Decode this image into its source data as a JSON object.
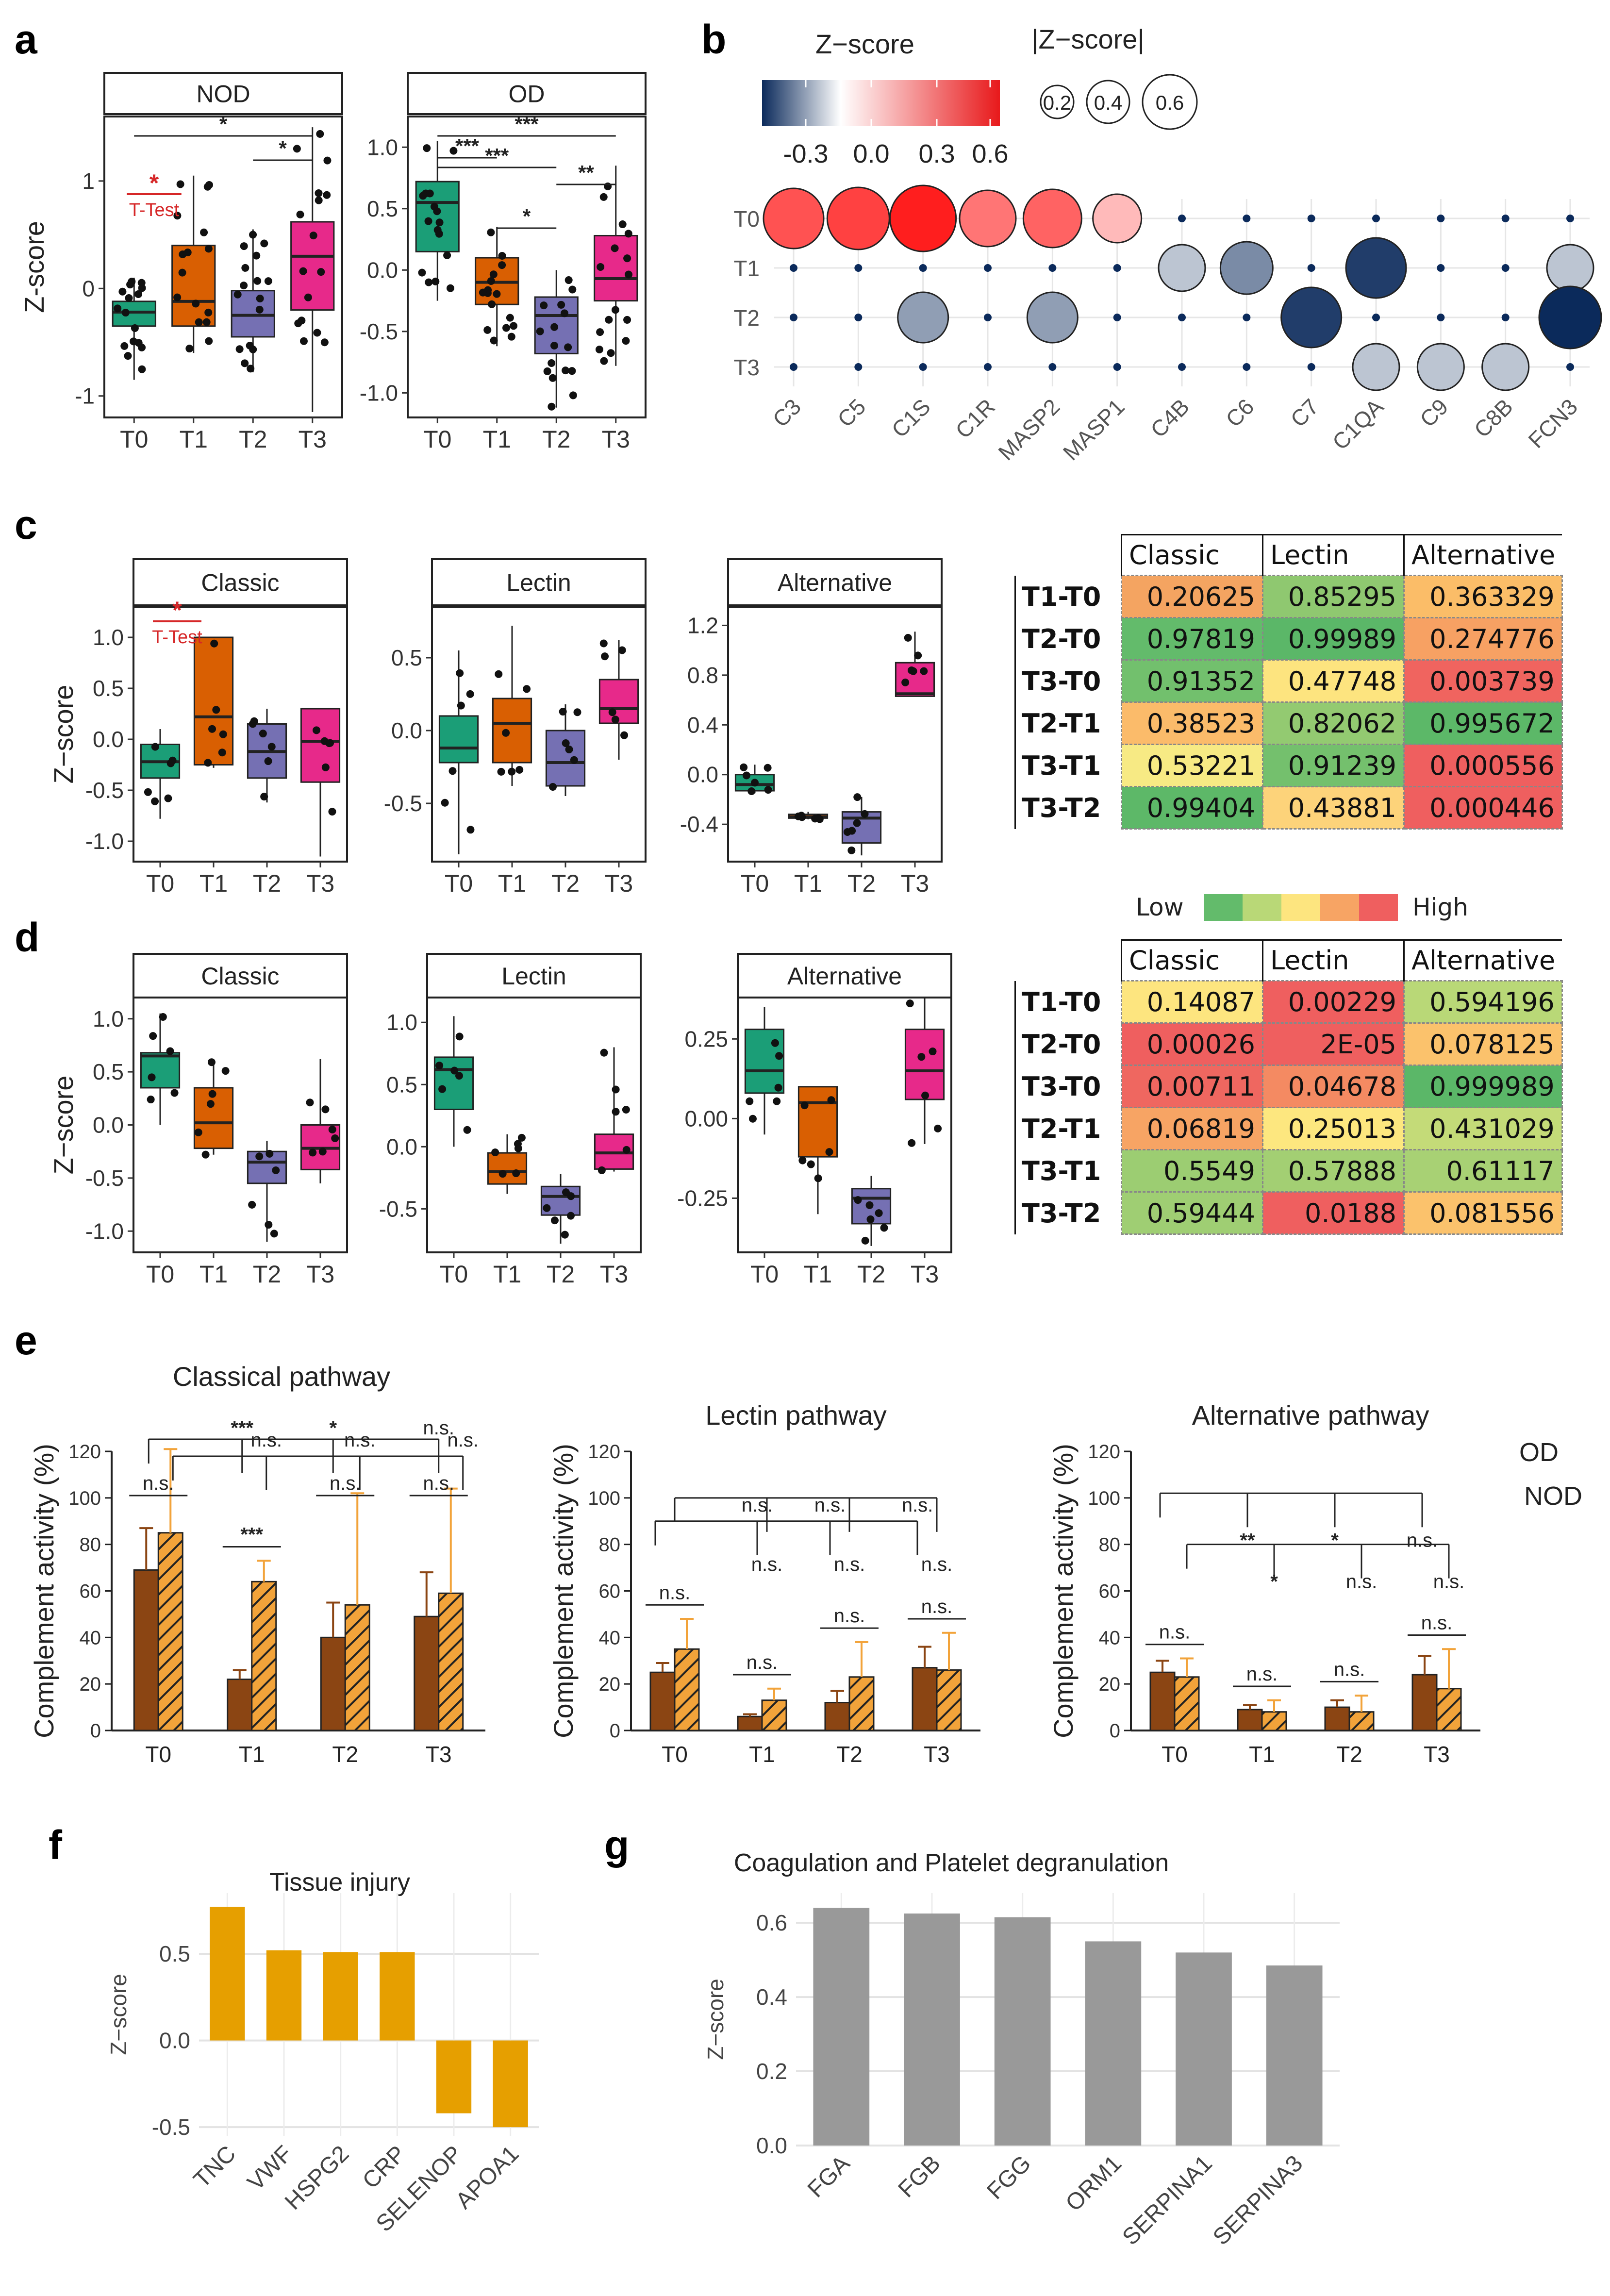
{
  "panel_labels": {
    "a": "a",
    "b": "b",
    "c": "c",
    "d": "d",
    "e": "e",
    "f": "f",
    "g": "g"
  },
  "colors": {
    "T0": "#1b9e77",
    "T1": "#d95f02",
    "T2": "#7570b3",
    "T3": "#e7298a",
    "brown": "#8B4513",
    "orange": "#f2a33a",
    "gold": "#E69F00",
    "gray": "#999999",
    "red": "#d62728",
    "navy": "#0b2a5b"
  },
  "chart_data": [
    {
      "id": "a-NOD",
      "type": "box",
      "title": "NOD",
      "ylabel": "Z-score",
      "categories": [
        "T0",
        "T1",
        "T2",
        "T3"
      ],
      "ylim": [
        -1.2,
        1.6
      ],
      "yticks": [
        -1,
        0,
        1
      ],
      "boxes": [
        {
          "q1": -0.35,
          "median": -0.22,
          "q3": -0.12,
          "lo": -0.85,
          "hi": 0.1
        },
        {
          "q1": -0.35,
          "median": -0.12,
          "q3": 0.4,
          "lo": -0.6,
          "hi": 1.05
        },
        {
          "q1": -0.45,
          "median": -0.25,
          "q3": -0.02,
          "lo": -0.78,
          "hi": 0.55
        },
        {
          "q1": -0.2,
          "median": 0.3,
          "q3": 0.62,
          "lo": -1.15,
          "hi": 1.5
        }
      ],
      "brackets": [
        {
          "from": 0,
          "to": 3,
          "label": "*"
        },
        {
          "from": 2,
          "to": 3,
          "label": "*"
        }
      ],
      "ttest": {
        "star": "*",
        "label": "T-Test"
      }
    },
    {
      "id": "a-OD",
      "type": "box",
      "title": "OD",
      "ylabel": "",
      "categories": [
        "T0",
        "T1",
        "T2",
        "T3"
      ],
      "ylim": [
        -1.2,
        1.25
      ],
      "yticks": [
        -1.0,
        -0.5,
        0.0,
        0.5,
        1.0
      ],
      "boxes": [
        {
          "q1": 0.15,
          "median": 0.55,
          "q3": 0.72,
          "lo": -0.25,
          "hi": 1.05
        },
        {
          "q1": -0.28,
          "median": -0.1,
          "q3": 0.1,
          "lo": -0.62,
          "hi": 0.35
        },
        {
          "q1": -0.68,
          "median": -0.37,
          "q3": -0.22,
          "lo": -1.12,
          "hi": 0.0
        },
        {
          "q1": -0.25,
          "median": -0.07,
          "q3": 0.28,
          "lo": -0.78,
          "hi": 0.85
        }
      ],
      "brackets": [
        {
          "from": 0,
          "to": 3,
          "label": "***"
        },
        {
          "from": 0,
          "to": 1,
          "label": "***"
        },
        {
          "from": 0,
          "to": 2,
          "label": "***"
        },
        {
          "from": 1,
          "to": 2,
          "label": "*"
        },
        {
          "from": 2,
          "to": 3,
          "label": "**"
        }
      ]
    },
    {
      "id": "b-dot",
      "type": "scatter",
      "title": "Z−score",
      "size_legend_title": "|Z−score|",
      "colorbar_ticks": [
        "-0.3",
        "0.0",
        "0.3",
        "0.6"
      ],
      "size_ticks": [
        "0.2",
        "0.4",
        "0.6"
      ],
      "rows": [
        "T0",
        "T1",
        "T2",
        "T3"
      ],
      "cols": [
        "C3",
        "C5",
        "C1S",
        "C1R",
        "MASP2",
        "MASP1",
        "C4B",
        "C6",
        "C7",
        "C1QA",
        "C9",
        "C8B",
        "FCN3"
      ],
      "points": [
        {
          "row": 0,
          "col": 0,
          "z": 0.5
        },
        {
          "row": 0,
          "col": 1,
          "z": 0.55
        },
        {
          "row": 0,
          "col": 2,
          "z": 0.65
        },
        {
          "row": 0,
          "col": 3,
          "z": 0.4
        },
        {
          "row": 0,
          "col": 4,
          "z": 0.45
        },
        {
          "row": 0,
          "col": 5,
          "z": 0.2
        },
        {
          "row": 1,
          "col": 6,
          "z": -0.15
        },
        {
          "row": 1,
          "col": 7,
          "z": -0.3
        },
        {
          "row": 1,
          "col": 9,
          "z": -0.5
        },
        {
          "row": 1,
          "col": 12,
          "z": -0.15
        },
        {
          "row": 2,
          "col": 2,
          "z": -0.25
        },
        {
          "row": 2,
          "col": 4,
          "z": -0.25
        },
        {
          "row": 2,
          "col": 8,
          "z": -0.5
        },
        {
          "row": 2,
          "col": 12,
          "z": -0.55
        },
        {
          "row": 3,
          "col": 9,
          "z": -0.15
        },
        {
          "row": 3,
          "col": 10,
          "z": -0.15
        },
        {
          "row": 3,
          "col": 11,
          "z": -0.15
        }
      ]
    },
    {
      "id": "c-Classic",
      "type": "box",
      "title": "Classic",
      "ylabel": "Z−score",
      "categories": [
        "T0",
        "T1",
        "T2",
        "T3"
      ],
      "ylim": [
        -1.2,
        1.3
      ],
      "yticks": [
        -1.0,
        -0.5,
        0.0,
        0.5,
        1.0
      ],
      "boxes": [
        {
          "q1": -0.38,
          "median": -0.22,
          "q3": -0.05,
          "lo": -0.78,
          "hi": 0.1
        },
        {
          "q1": -0.25,
          "median": 0.22,
          "q3": 1.0,
          "lo": -0.28,
          "hi": 1.0
        },
        {
          "q1": -0.38,
          "median": -0.12,
          "q3": 0.15,
          "lo": -0.62,
          "hi": 0.3
        },
        {
          "q1": -0.42,
          "median": -0.02,
          "q3": 0.3,
          "lo": -1.15,
          "hi": 0.3
        }
      ],
      "ttest": {
        "star": "*",
        "label": "T-Test"
      }
    },
    {
      "id": "c-Lectin",
      "type": "box",
      "title": "Lectin",
      "ylabel": "",
      "categories": [
        "T0",
        "T1",
        "T2",
        "T3"
      ],
      "ylim": [
        -0.9,
        0.85
      ],
      "yticks": [
        -0.5,
        0.0,
        0.5
      ],
      "boxes": [
        {
          "q1": -0.22,
          "median": -0.12,
          "q3": 0.1,
          "lo": -0.85,
          "hi": 0.55
        },
        {
          "q1": -0.22,
          "median": 0.05,
          "q3": 0.22,
          "lo": -0.38,
          "hi": 0.72
        },
        {
          "q1": -0.38,
          "median": -0.22,
          "q3": 0.0,
          "lo": -0.45,
          "hi": 0.18
        },
        {
          "q1": 0.05,
          "median": 0.15,
          "q3": 0.35,
          "lo": -0.2,
          "hi": 0.62
        }
      ]
    },
    {
      "id": "c-Alternative",
      "type": "box",
      "title": "Alternative",
      "ylabel": "",
      "categories": [
        "T0",
        "T1",
        "T2",
        "T3"
      ],
      "ylim": [
        -0.7,
        1.35
      ],
      "yticks": [
        -0.4,
        0.0,
        0.4,
        0.8,
        1.2
      ],
      "boxes": [
        {
          "q1": -0.13,
          "median": -0.08,
          "q3": -0.0,
          "lo": -0.15,
          "hi": 0.08
        },
        {
          "q1": -0.35,
          "median": -0.34,
          "q3": -0.32,
          "lo": -0.36,
          "hi": -0.3
        },
        {
          "q1": -0.55,
          "median": -0.35,
          "q3": -0.3,
          "lo": -0.65,
          "hi": -0.18
        },
        {
          "q1": 0.63,
          "median": 0.65,
          "q3": 0.9,
          "lo": 0.63,
          "hi": 1.15
        }
      ]
    },
    {
      "id": "d-Classic",
      "type": "box",
      "title": "Classic",
      "ylabel": "Z−score",
      "categories": [
        "T0",
        "T1",
        "T2",
        "T3"
      ],
      "ylim": [
        -1.2,
        1.2
      ],
      "yticks": [
        -1.0,
        -0.5,
        0.0,
        0.5,
        1.0
      ],
      "boxes": [
        {
          "q1": 0.35,
          "median": 0.65,
          "q3": 0.68,
          "lo": 0.0,
          "hi": 1.05
        },
        {
          "q1": -0.22,
          "median": 0.02,
          "q3": 0.35,
          "lo": -0.28,
          "hi": 0.6
        },
        {
          "q1": -0.55,
          "median": -0.35,
          "q3": -0.25,
          "lo": -1.1,
          "hi": -0.15
        },
        {
          "q1": -0.42,
          "median": -0.22,
          "q3": 0.0,
          "lo": -0.55,
          "hi": 0.62
        }
      ]
    },
    {
      "id": "d-Lectin",
      "type": "box",
      "title": "Lectin",
      "ylabel": "",
      "categories": [
        "T0",
        "T1",
        "T2",
        "T3"
      ],
      "ylim": [
        -0.85,
        1.2
      ],
      "yticks": [
        -0.5,
        0.0,
        0.5,
        1.0
      ],
      "boxes": [
        {
          "q1": 0.3,
          "median": 0.62,
          "q3": 0.72,
          "lo": 0.0,
          "hi": 1.05
        },
        {
          "q1": -0.3,
          "median": -0.2,
          "q3": -0.05,
          "lo": -0.38,
          "hi": 0.1
        },
        {
          "q1": -0.55,
          "median": -0.4,
          "q3": -0.32,
          "lo": -0.78,
          "hi": -0.22
        },
        {
          "q1": -0.18,
          "median": -0.05,
          "q3": 0.1,
          "lo": -0.2,
          "hi": 0.8
        }
      ]
    },
    {
      "id": "d-Alternative",
      "type": "box",
      "title": "Alternative",
      "ylabel": "",
      "categories": [
        "T0",
        "T1",
        "T2",
        "T3"
      ],
      "ylim": [
        -0.42,
        0.38
      ],
      "yticks": [
        -0.25,
        0.0,
        0.25
      ],
      "boxes": [
        {
          "q1": 0.08,
          "median": 0.15,
          "q3": 0.28,
          "lo": -0.05,
          "hi": 0.35
        },
        {
          "q1": -0.12,
          "median": 0.05,
          "q3": 0.1,
          "lo": -0.3,
          "hi": 0.1
        },
        {
          "q1": -0.33,
          "median": -0.25,
          "q3": -0.22,
          "lo": -0.4,
          "hi": -0.18
        },
        {
          "q1": 0.06,
          "median": 0.15,
          "q3": 0.28,
          "lo": -0.08,
          "hi": 0.38
        }
      ]
    },
    {
      "id": "e-Classical",
      "type": "bar",
      "title": "Classical pathway",
      "ylabel": "Complement activity (%)",
      "categories": [
        "T0",
        "T1",
        "T2",
        "T3"
      ],
      "ylim": [
        0,
        120
      ],
      "yticks": [
        0,
        20,
        40,
        60,
        80,
        100,
        120
      ],
      "series": [
        {
          "name": "OD",
          "values": [
            69,
            22,
            40,
            49
          ],
          "err": [
            18,
            4,
            15,
            19
          ]
        },
        {
          "name": "NOD",
          "values": [
            85,
            64,
            54,
            59
          ],
          "err": [
            36,
            9,
            48,
            45
          ]
        }
      ],
      "sig": [
        "***",
        "*",
        "n.s.",
        "n.s.",
        "n.s.",
        "n.s.",
        "***",
        "n.s.",
        "n.s.",
        "n.s.",
        "n.s."
      ]
    },
    {
      "id": "e-Lectin",
      "type": "bar",
      "title": "Lectin pathway",
      "ylabel": "Complement activity (%)",
      "categories": [
        "T0",
        "T1",
        "T2",
        "T3"
      ],
      "ylim": [
        0,
        120
      ],
      "yticks": [
        0,
        20,
        40,
        60,
        80,
        100,
        120
      ],
      "series": [
        {
          "name": "OD",
          "values": [
            25,
            6,
            12,
            27
          ],
          "err": [
            4,
            1,
            5,
            9
          ]
        },
        {
          "name": "NOD",
          "values": [
            35,
            13,
            23,
            26
          ],
          "err": [
            13,
            5,
            15,
            16
          ]
        }
      ],
      "sig": [
        "n.s.",
        "n.s.",
        "n.s.",
        "n.s.",
        "n.s.",
        "n.s.",
        "n.s.",
        "n.s.",
        "n.s.",
        "n.s.",
        "n.s."
      ]
    },
    {
      "id": "e-Alternative",
      "type": "bar",
      "title": "Alternative pathway",
      "ylabel": "Complement activity (%)",
      "categories": [
        "T0",
        "T1",
        "T2",
        "T3"
      ],
      "ylim": [
        0,
        120
      ],
      "yticks": [
        0,
        20,
        40,
        60,
        80,
        100,
        120
      ],
      "series": [
        {
          "name": "OD",
          "values": [
            25,
            9,
            10,
            24
          ],
          "err": [
            5,
            2,
            3,
            8
          ]
        },
        {
          "name": "NOD",
          "values": [
            23,
            8,
            8,
            18
          ],
          "err": [
            8,
            5,
            7,
            17
          ]
        }
      ],
      "sig": [
        "**",
        "*",
        "n.s.",
        "*",
        "n.s.",
        "n.s.",
        "n.s.",
        "n.s.",
        "n.s.",
        "n.s.",
        "n.s."
      ],
      "legend": [
        "OD",
        "NOD"
      ]
    },
    {
      "id": "f",
      "type": "bar",
      "title": "Tissue injury",
      "ylabel": "Z−score",
      "categories": [
        "TNC",
        "VWF",
        "HSPG2",
        "CRP",
        "SELENOP",
        "APOA1"
      ],
      "values": [
        0.77,
        0.52,
        0.51,
        0.51,
        -0.42,
        -0.5
      ],
      "ylim": [
        -0.55,
        0.85
      ],
      "yticks": [
        -0.5,
        0.0,
        0.5
      ]
    },
    {
      "id": "g",
      "type": "bar",
      "title": "Coagulation and Platelet degranulation",
      "ylabel": "Z−score",
      "categories": [
        "FGA",
        "FGB",
        "FGG",
        "ORM1",
        "SERPINA1",
        "SERPINA3"
      ],
      "values": [
        0.64,
        0.625,
        0.615,
        0.55,
        0.52,
        0.485
      ],
      "ylim": [
        0,
        0.68
      ],
      "yticks": [
        0.0,
        0.2,
        0.4,
        0.6
      ]
    }
  ],
  "tables": {
    "c": {
      "columns": [
        "Classic",
        "Lectin",
        "Alternative"
      ],
      "rows": [
        {
          "label": "T1-T0",
          "values": [
            "0.20625",
            "0.85295",
            "0.363329"
          ],
          "colors": [
            "#f4a461",
            "#8fc870",
            "#fbbd68"
          ]
        },
        {
          "label": "T2-T0",
          "values": [
            "0.97819",
            "0.99989",
            "0.274776"
          ],
          "colors": [
            "#63bb6b",
            "#5bb768",
            "#f7a163"
          ]
        },
        {
          "label": "T3-T0",
          "values": [
            "0.91352",
            "0.47748",
            "0.003739"
          ],
          "colors": [
            "#72c06d",
            "#fde47f",
            "#f0645f"
          ]
        },
        {
          "label": "T2-T1",
          "values": [
            "0.38523",
            "0.82062",
            "0.995672"
          ],
          "colors": [
            "#fbbb6a",
            "#93ca71",
            "#5cb868"
          ]
        },
        {
          "label": "T3-T1",
          "values": [
            "0.53221",
            "0.91239",
            "0.000556"
          ],
          "colors": [
            "#f7ea84",
            "#74c06d",
            "#ef5f5f"
          ]
        },
        {
          "label": "T3-T2",
          "values": [
            "0.99404",
            "0.43881",
            "0.000446"
          ],
          "colors": [
            "#5db868",
            "#fdd37a",
            "#ef5f5f"
          ]
        }
      ],
      "legend_low": "Low",
      "legend_high": "High"
    },
    "d": {
      "columns": [
        "Classic",
        "Lectin",
        "Alternative"
      ],
      "rows": [
        {
          "label": "T1-T0",
          "values": [
            "0.14087",
            "0.00229",
            "0.594196"
          ],
          "colors": [
            "#fde57f",
            "#ef5f5f",
            "#b9d877"
          ]
        },
        {
          "label": "T2-T0",
          "values": [
            "0.00026",
            "2E-05",
            "0.078125"
          ],
          "colors": [
            "#ef5f5f",
            "#ef5f5f",
            "#fbc26c"
          ]
        },
        {
          "label": "T3-T0",
          "values": [
            "0.00711",
            "0.04678",
            "0.999989"
          ],
          "colors": [
            "#ef6760",
            "#f48a62",
            "#5bb768"
          ]
        },
        {
          "label": "T2-T1",
          "values": [
            "0.06819",
            "0.25013",
            "0.431029"
          ],
          "colors": [
            "#f7a464",
            "#fde77f",
            "#c4db78"
          ]
        },
        {
          "label": "T3-T1",
          "values": [
            "0.5549",
            "0.57888",
            "0.61117"
          ],
          "colors": [
            "#9ccd72",
            "#a3cf73",
            "#a8d174"
          ]
        },
        {
          "label": "T3-T2",
          "values": [
            "0.59444",
            "0.0188",
            "0.081556"
          ],
          "colors": [
            "#9fce73",
            "#ef5f5f",
            "#fbc26c"
          ]
        }
      ]
    }
  }
}
